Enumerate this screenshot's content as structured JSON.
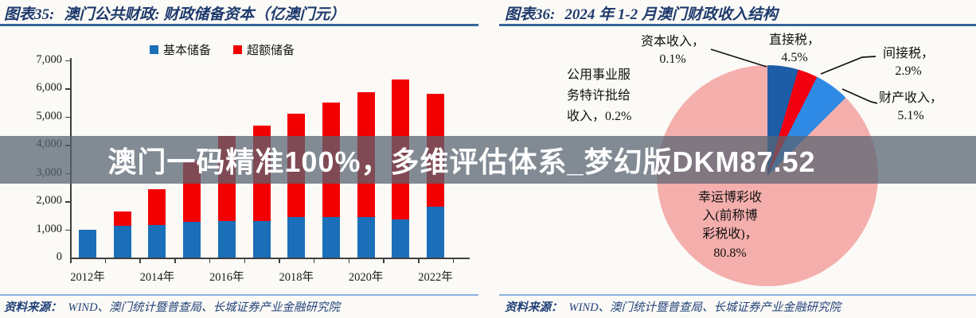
{
  "watermark": {
    "text": "澳门一码精准100%，多维评估体系_梦幻版DKM87.52"
  },
  "left_chart": {
    "title_prefix": "图表35:",
    "title_text": "澳门公共财政: 财政储备资本（亿澳门元）",
    "legend": [
      "基本储备",
      "超额储备"
    ],
    "source_label": "资料来源：",
    "source_text": "WIND、澳门统计暨普查局、长城证券产业金融研究院"
  },
  "right_chart": {
    "title_prefix": "图表36:",
    "title_text": "2024 年 1-2 月澳门财政收入结构",
    "labels": {
      "capital": {
        "line1": "资本收入，",
        "line2": "0.1%"
      },
      "direct": {
        "line1": "直接税，",
        "line2": "4.5%"
      },
      "indirect": {
        "line1": "间接税，",
        "line2": "2.9%"
      },
      "property": {
        "line1": "财产收入，",
        "line2": "5.1%"
      },
      "utility": {
        "line1": "公用事业服",
        "line2": "务特许批给",
        "line3": "收入，0.2%"
      },
      "gaming": {
        "line1": "幸运博彩收",
        "line2": "入(前称博",
        "line3": "彩税收)，",
        "line4": "80.8%"
      }
    },
    "source_label": "资料来源：",
    "source_text": "WIND、澳门统计暨普查局、长城证券产业金融研究院"
  },
  "chart_data": [
    {
      "type": "bar",
      "stacked": true,
      "title": "图表35: 澳门公共财政: 财政储备资本（亿澳门元）",
      "unit": "亿澳门元",
      "categories": [
        "2012年",
        "2013年",
        "2014年",
        "2015年",
        "2016年",
        "2017年",
        "2018年",
        "2019年",
        "2020年",
        "2021年",
        "2022年"
      ],
      "x_labels_shown": [
        {
          "index": 0,
          "text": "2012年"
        },
        {
          "index": 2,
          "text": "2014年"
        },
        {
          "index": 4,
          "text": "2016年"
        },
        {
          "index": 6,
          "text": "2018年"
        },
        {
          "index": 8,
          "text": "2020年"
        },
        {
          "index": 10,
          "text": "2022年"
        }
      ],
      "series": [
        {
          "name": "基本储备",
          "color": "#1B6EB8",
          "values": [
            1000,
            1120,
            1160,
            1280,
            1300,
            1300,
            1440,
            1440,
            1440,
            1350,
            1800
          ]
        },
        {
          "name": "超额储备",
          "color": "#F20000",
          "values": [
            0,
            500,
            1270,
            2160,
            3000,
            3390,
            3660,
            4060,
            4410,
            4950,
            4000
          ]
        }
      ],
      "ylim": [
        0,
        7000
      ],
      "ytick_interval": 1000,
      "ytick_labels": [
        "0",
        "1,000",
        "2,000",
        "3,000",
        "4,000",
        "5,000",
        "6,000",
        "7,000"
      ],
      "grid": false,
      "legend_position": "top"
    },
    {
      "type": "pie",
      "title": "图表36: 2024 年 1-2 月澳门财政收入结构",
      "slices": [
        {
          "label": "直接税",
          "value": 4.5,
          "color": "#1D5CA6"
        },
        {
          "label": "间接税",
          "value": 2.9,
          "color": "#F2000F"
        },
        {
          "label": "财产收入",
          "value": 5.1,
          "color": "#2E8AE5"
        },
        {
          "label": "幸运博彩收入(前称博彩税收)",
          "value": 80.8,
          "color": "#F4AFAD",
          "fills_remainder": true
        },
        {
          "label": "资本收入",
          "value": 0.1,
          "color": "#F4AFAD"
        },
        {
          "label": "公用事业服务特许批给收入",
          "value": 0.2,
          "color": "#F4AFAD"
        }
      ],
      "start_angle_deg": 0,
      "direction": "clockwise"
    }
  ]
}
